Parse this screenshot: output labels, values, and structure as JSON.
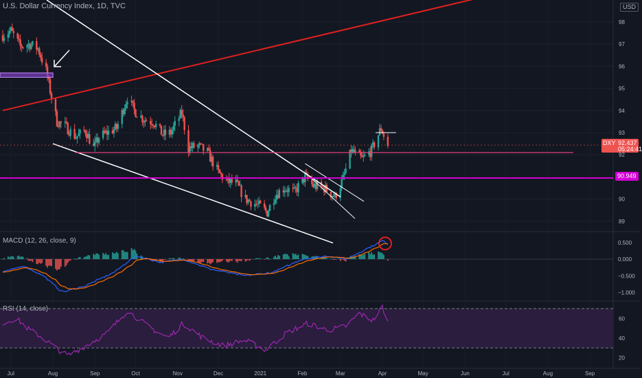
{
  "header": {
    "symbol_title": "U.S. Dollar Currency Index, 1D, TVC",
    "currency_badge": "USD"
  },
  "price_pane": {
    "ticks": [
      98,
      97,
      96,
      95,
      94,
      93,
      92,
      90,
      89
    ],
    "last_price": {
      "symbol": "DXY",
      "value": "92.437",
      "countdown": "05:24:41",
      "color": "#ef5350"
    },
    "level_marker": {
      "value": "90.949",
      "color": "#d400d4"
    }
  },
  "macd_pane": {
    "label": "MACD (12, 26, close, 9)",
    "ticks": [
      "0.500",
      "0.000",
      "−0.500",
      "−1.000"
    ]
  },
  "rsi_pane": {
    "label": "RSI (14, close)",
    "ticks": [
      "60",
      "40",
      "20"
    ]
  },
  "time_axis": [
    "Jul",
    "Aug",
    "Sep",
    "Oct",
    "Nov",
    "Dec",
    "2021",
    "Feb",
    "Mar",
    "Apr",
    "May",
    "Jun",
    "Jul",
    "Aug",
    "Sep"
  ],
  "colors": {
    "background": "#131722",
    "up": "#26a69a",
    "down": "#ef5350",
    "trend_red": "#e02020",
    "trend_white": "#ffffff",
    "magenta": "#d400d4",
    "pink": "#e0407a",
    "macd": "#2962ff",
    "signal": "#ff6d00",
    "rsi": "#9c27b0",
    "highlight_zone": "#7b3fbf"
  },
  "chart_data": {
    "type": "candlestick",
    "series": "U.S. Dollar Currency Index daily",
    "price_anchors": [
      [
        "Jun 25",
        97.4
      ],
      [
        "Jul 1",
        97.6
      ],
      [
        "Jul 8",
        96.9
      ],
      [
        "Jul 15",
        97.0
      ],
      [
        "Jul 21",
        96.8
      ],
      [
        "Jul 27",
        95.8
      ],
      [
        "Jul 31",
        94.6
      ],
      [
        "Aug 4",
        93.5
      ],
      [
        "Aug 10",
        93.3
      ],
      [
        "Aug 18",
        92.8
      ],
      [
        "Aug 25",
        93.1
      ],
      [
        "Aug 31",
        92.3
      ],
      [
        "Sep 4",
        92.8
      ],
      [
        "Sep 10",
        93.0
      ],
      [
        "Sep 17",
        93.2
      ],
      [
        "Sep 25",
        94.6
      ],
      [
        "Sep 30",
        94.0
      ],
      [
        "Oct 7",
        93.6
      ],
      [
        "Oct 14",
        93.5
      ],
      [
        "Oct 21",
        92.9
      ],
      [
        "Oct 27",
        93.0
      ],
      [
        "Nov 4",
        93.9
      ],
      [
        "Nov 9",
        92.3
      ],
      [
        "Nov 16",
        92.4
      ],
      [
        "Nov 23",
        92.1
      ],
      [
        "Dec 1",
        91.2
      ],
      [
        "Dec 7",
        90.8
      ],
      [
        "Dec 14",
        90.7
      ],
      [
        "Dec 21",
        90.0
      ],
      [
        "Dec 31",
        89.7
      ],
      [
        "Jan 6",
        89.4
      ],
      [
        "Jan 12",
        90.2
      ],
      [
        "Jan 19",
        90.5
      ],
      [
        "Jan 26",
        90.3
      ],
      [
        "Feb 3",
        91.0
      ],
      [
        "Feb 9",
        90.6
      ],
      [
        "Feb 17",
        90.5
      ],
      [
        "Feb 25",
        90.1
      ],
      [
        "Mar 3",
        90.9
      ],
      [
        "Mar 9",
        92.2
      ],
      [
        "Mar 17",
        91.8
      ],
      [
        "Mar 24",
        92.2
      ],
      [
        "Mar 31",
        93.2
      ],
      [
        "Apr 5",
        92.4
      ]
    ],
    "macd_anchors": [
      [
        "Jun 25",
        -0.4
      ],
      [
        "Jul 10",
        -0.2
      ],
      [
        "Jul 25",
        -0.5
      ],
      [
        "Aug 8",
        -1.0
      ],
      [
        "Aug 25",
        -0.8
      ],
      [
        "Sep 15",
        -0.4
      ],
      [
        "Oct 1",
        0.1
      ],
      [
        "Oct 20",
        -0.1
      ],
      [
        "Nov 5",
        0.0
      ],
      [
        "Nov 25",
        -0.3
      ],
      [
        "Dec 20",
        -0.5
      ],
      [
        "Jan 10",
        -0.4
      ],
      [
        "Feb 1",
        0.0
      ],
      [
        "Feb 20",
        0.1
      ],
      [
        "Mar 5",
        0.0
      ],
      [
        "Mar 20",
        0.3
      ],
      [
        "Apr 1",
        0.55
      ],
      [
        "Apr 5",
        0.45
      ]
    ],
    "rsi_anchors": [
      [
        "Jun 25",
        55
      ],
      [
        "Jul 5",
        60
      ],
      [
        "Jul 15",
        48
      ],
      [
        "Jul 25",
        40
      ],
      [
        "Aug 5",
        28
      ],
      [
        "Aug 12",
        22
      ],
      [
        "Aug 25",
        32
      ],
      [
        "Sep 10",
        45
      ],
      [
        "Sep 25",
        68
      ],
      [
        "Oct 10",
        52
      ],
      [
        "Oct 25",
        40
      ],
      [
        "Nov 5",
        55
      ],
      [
        "Nov 20",
        40
      ],
      [
        "Dec 5",
        32
      ],
      [
        "Dec 20",
        38
      ],
      [
        "Jan 5",
        28
      ],
      [
        "Jan 20",
        45
      ],
      [
        "Feb 5",
        55
      ],
      [
        "Feb 20",
        48
      ],
      [
        "Mar 5",
        52
      ],
      [
        "Mar 15",
        65
      ],
      [
        "Mar 25",
        58
      ],
      [
        "Apr 1",
        72
      ],
      [
        "Apr 5",
        56
      ]
    ],
    "annotations": {
      "resistance_red_line": [
        [
          "Jun 25",
          94.0
        ],
        [
          "Sep 2",
          95.0
        ]
      ],
      "falling_wedge_upper": [
        [
          "Jun 25",
          99.0
        ],
        [
          "Mar 1",
          90.1
        ]
      ],
      "falling_wedge_lower": [
        [
          "Aug 1",
          92.5
        ],
        [
          "Feb 15",
          88.2
        ]
      ],
      "small_channel_upper": [
        [
          "Feb 3",
          91.6
        ],
        [
          "Mar 8",
          90.3
        ]
      ],
      "small_channel_lower": [
        [
          "Feb 3",
          91.2
        ],
        [
          "Mar 5",
          89.5
        ]
      ],
      "support_line": 92.1,
      "top_line": 93.0,
      "highlight_zone": [
        95.5,
        95.7
      ]
    }
  }
}
